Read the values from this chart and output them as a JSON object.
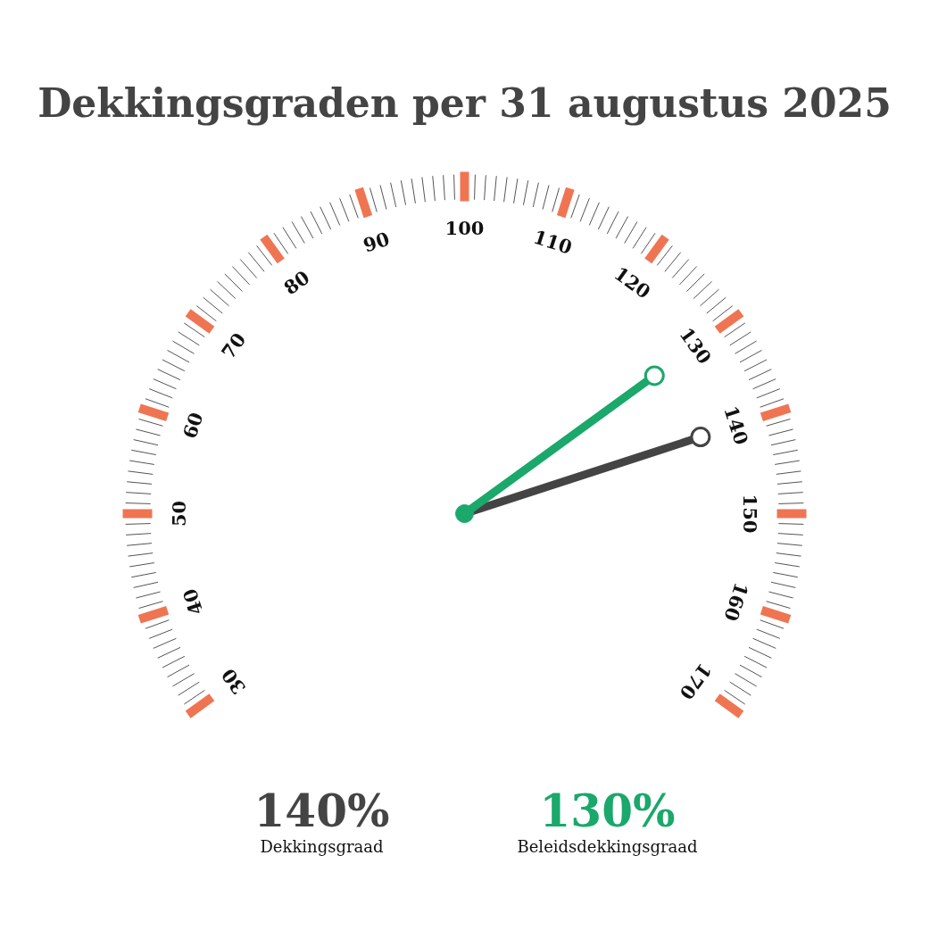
{
  "chart_data": {
    "type": "other",
    "title": "Dekkingsgraden per 31 augustus 2025",
    "annotations": [
      "30",
      "40",
      "50",
      "60",
      "70",
      "80",
      "90",
      "100",
      "110",
      "120",
      "130",
      "140",
      "150",
      "160",
      "170"
    ],
    "categories": [
      "Dekkingsgraad",
      "Beleidsdekkingsgraad"
    ],
    "values": [
      140,
      130
    ],
    "colors": [
      "#444444",
      "#1aa86b"
    ],
    "value_labels": [
      "140%",
      "130%"
    ]
  }
}
